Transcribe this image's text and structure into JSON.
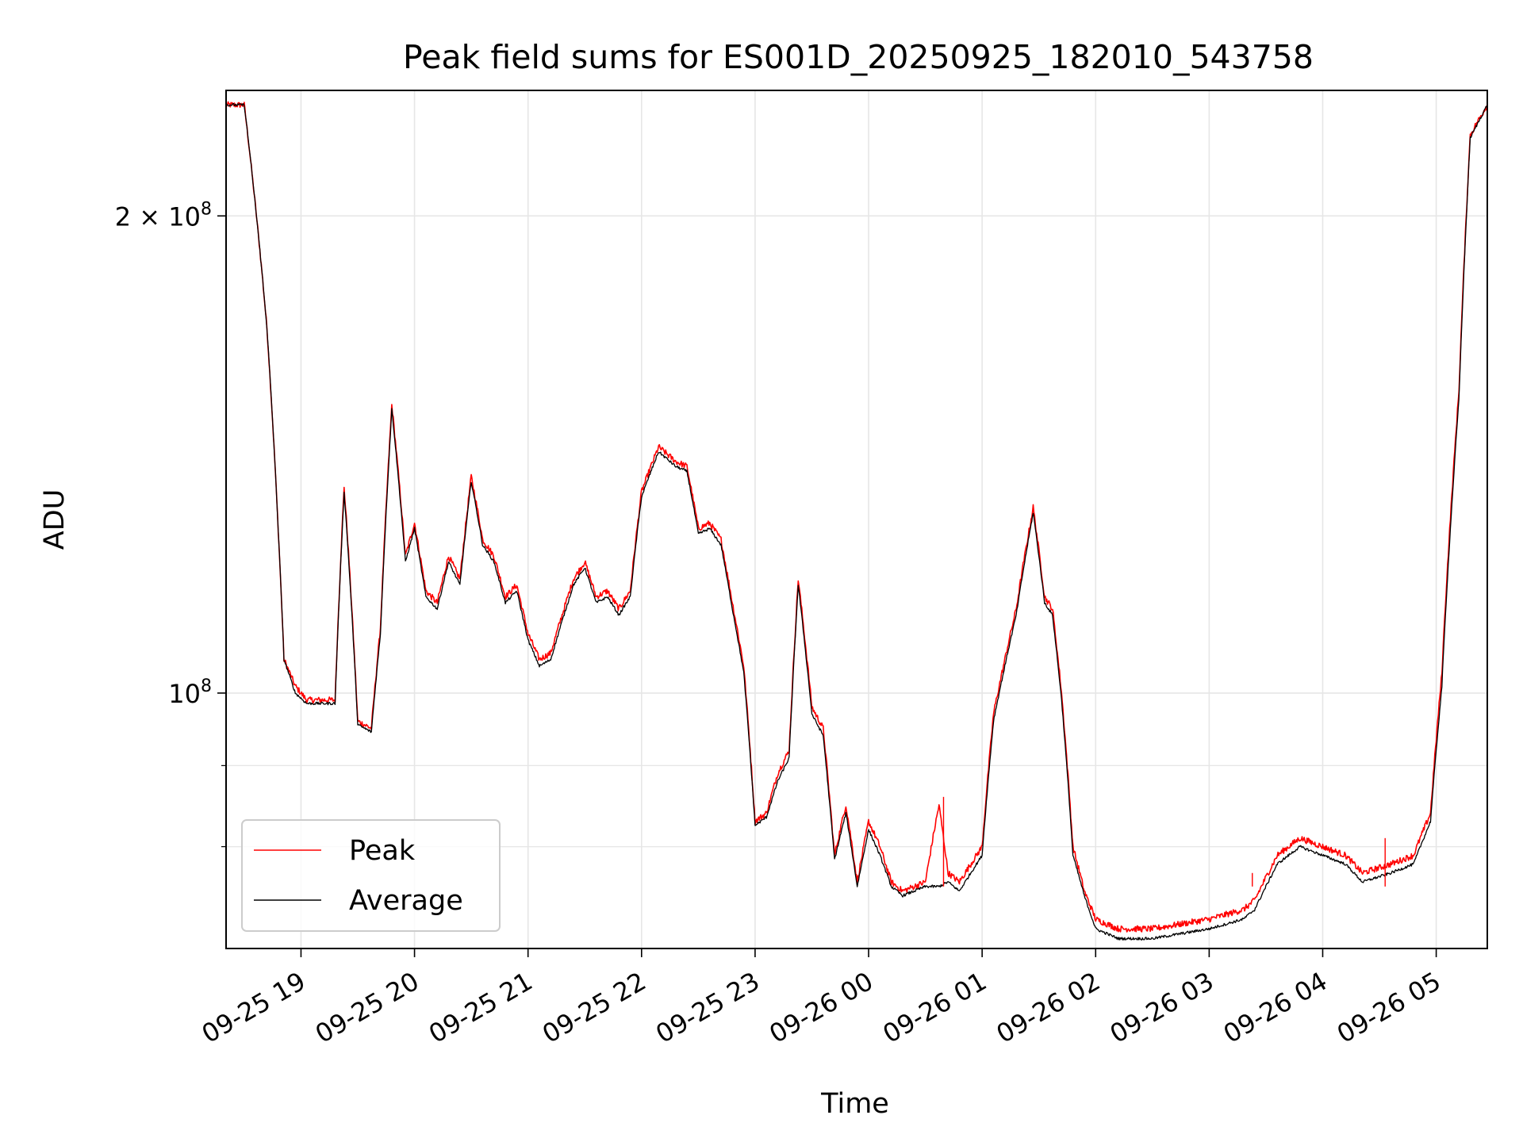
{
  "chart_data": {
    "type": "line",
    "title": "Peak field sums for ES001D_20250925_182010_543758",
    "xlabel": "Time",
    "ylabel": "ADU",
    "yscale": "log",
    "grid": true,
    "legend_position": "lower-left",
    "xlim": [
      18.34,
      29.45
    ],
    "ylim": [
      69000000,
      240000000
    ],
    "x_ticks": [
      {
        "value": 19,
        "label": "09-25 19"
      },
      {
        "value": 20,
        "label": "09-25 20"
      },
      {
        "value": 21,
        "label": "09-25 21"
      },
      {
        "value": 22,
        "label": "09-25 22"
      },
      {
        "value": 23,
        "label": "09-25 23"
      },
      {
        "value": 24,
        "label": "09-26 00"
      },
      {
        "value": 25,
        "label": "09-26 01"
      },
      {
        "value": 26,
        "label": "09-26 02"
      },
      {
        "value": 27,
        "label": "09-26 03"
      },
      {
        "value": 28,
        "label": "09-26 04"
      },
      {
        "value": 29,
        "label": "09-26 05"
      }
    ],
    "y_major_ticks": [
      {
        "value": 100000000,
        "base": "10",
        "exp": "8",
        "mantissa": ""
      },
      {
        "value": 200000000,
        "base": "10",
        "exp": "8",
        "mantissa": "2 × "
      }
    ],
    "y_minor_ticks": [
      80000000,
      90000000
    ],
    "x_units": "hours since 2025-09-25 00:00",
    "series": [
      {
        "name": "Peak",
        "color": "#ff0000",
        "points": [
          [
            18.34,
            235
          ],
          [
            18.5,
            235
          ],
          [
            18.7,
            170
          ],
          [
            18.85,
            105
          ],
          [
            18.95,
            101
          ],
          [
            19.05,
            99
          ],
          [
            19.3,
            99
          ],
          [
            19.38,
            135
          ],
          [
            19.5,
            96
          ],
          [
            19.62,
            95
          ],
          [
            19.7,
            110
          ],
          [
            19.8,
            152
          ],
          [
            19.92,
            122
          ],
          [
            20.0,
            128
          ],
          [
            20.1,
            116
          ],
          [
            20.2,
            114
          ],
          [
            20.3,
            122
          ],
          [
            20.4,
            118
          ],
          [
            20.5,
            137
          ],
          [
            20.6,
            125
          ],
          [
            20.7,
            122
          ],
          [
            20.8,
            115
          ],
          [
            20.9,
            117
          ],
          [
            21.0,
            109
          ],
          [
            21.1,
            105
          ],
          [
            21.2,
            106
          ],
          [
            21.3,
            112
          ],
          [
            21.4,
            118
          ],
          [
            21.5,
            121
          ],
          [
            21.6,
            115
          ],
          [
            21.7,
            116
          ],
          [
            21.8,
            113
          ],
          [
            21.9,
            116
          ],
          [
            22.0,
            134
          ],
          [
            22.15,
            143
          ],
          [
            22.3,
            140
          ],
          [
            22.4,
            139
          ],
          [
            22.5,
            127
          ],
          [
            22.6,
            128
          ],
          [
            22.7,
            125
          ],
          [
            22.8,
            114
          ],
          [
            22.9,
            104
          ],
          [
            23.0,
            83
          ],
          [
            23.1,
            84
          ],
          [
            23.2,
            89
          ],
          [
            23.3,
            92
          ],
          [
            23.38,
            118
          ],
          [
            23.5,
            98
          ],
          [
            23.6,
            95
          ],
          [
            23.7,
            79
          ],
          [
            23.8,
            85
          ],
          [
            23.9,
            76
          ],
          [
            24.0,
            83
          ],
          [
            24.1,
            80
          ],
          [
            24.2,
            76
          ],
          [
            24.3,
            75
          ],
          [
            24.5,
            76
          ],
          [
            24.62,
            85
          ],
          [
            24.7,
            77
          ],
          [
            24.8,
            76
          ],
          [
            25.0,
            80
          ],
          [
            25.1,
            97
          ],
          [
            25.2,
            105
          ],
          [
            25.3,
            113
          ],
          [
            25.45,
            131
          ],
          [
            25.55,
            115
          ],
          [
            25.62,
            113
          ],
          [
            25.7,
            100
          ],
          [
            25.8,
            80
          ],
          [
            25.9,
            75
          ],
          [
            26.0,
            72
          ],
          [
            26.2,
            71
          ],
          [
            26.5,
            71
          ],
          [
            27.0,
            72
          ],
          [
            27.3,
            73
          ],
          [
            27.4,
            74
          ],
          [
            27.6,
            79
          ],
          [
            27.8,
            81
          ],
          [
            28.0,
            80
          ],
          [
            28.2,
            79
          ],
          [
            28.35,
            77
          ],
          [
            28.6,
            78
          ],
          [
            28.8,
            79
          ],
          [
            28.95,
            84
          ],
          [
            29.05,
            103
          ],
          [
            29.2,
            155
          ],
          [
            29.3,
            225
          ],
          [
            29.45,
            235
          ]
        ]
      },
      {
        "name": "Average",
        "color": "#000000",
        "points": [
          [
            18.34,
            235
          ],
          [
            18.5,
            235
          ],
          [
            18.7,
            170
          ],
          [
            18.85,
            105
          ],
          [
            18.95,
            100
          ],
          [
            19.05,
            98.5
          ],
          [
            19.3,
            98.5
          ],
          [
            19.38,
            134
          ],
          [
            19.5,
            95.5
          ],
          [
            19.62,
            94.5
          ],
          [
            19.7,
            109
          ],
          [
            19.8,
            151
          ],
          [
            19.92,
            121
          ],
          [
            20.0,
            127
          ],
          [
            20.1,
            115
          ],
          [
            20.2,
            113
          ],
          [
            20.3,
            121
          ],
          [
            20.4,
            117
          ],
          [
            20.5,
            136
          ],
          [
            20.6,
            124
          ],
          [
            20.7,
            121
          ],
          [
            20.8,
            114
          ],
          [
            20.9,
            116
          ],
          [
            21.0,
            108
          ],
          [
            21.1,
            104
          ],
          [
            21.2,
            105
          ],
          [
            21.3,
            111
          ],
          [
            21.4,
            117
          ],
          [
            21.5,
            120
          ],
          [
            21.6,
            114
          ],
          [
            21.7,
            115
          ],
          [
            21.8,
            112
          ],
          [
            21.9,
            115
          ],
          [
            22.0,
            133
          ],
          [
            22.15,
            142
          ],
          [
            22.3,
            139
          ],
          [
            22.4,
            138
          ],
          [
            22.5,
            126
          ],
          [
            22.6,
            127
          ],
          [
            22.7,
            124
          ],
          [
            22.8,
            113
          ],
          [
            22.9,
            103
          ],
          [
            23.0,
            82.5
          ],
          [
            23.1,
            83.5
          ],
          [
            23.2,
            88
          ],
          [
            23.3,
            91
          ],
          [
            23.38,
            117
          ],
          [
            23.5,
            97
          ],
          [
            23.6,
            94
          ],
          [
            23.7,
            78.5
          ],
          [
            23.8,
            84
          ],
          [
            23.9,
            75.5
          ],
          [
            24.0,
            82
          ],
          [
            24.1,
            79
          ],
          [
            24.2,
            75.5
          ],
          [
            24.3,
            74.5
          ],
          [
            24.5,
            75.5
          ],
          [
            24.62,
            75.5
          ],
          [
            24.7,
            76
          ],
          [
            24.8,
            75
          ],
          [
            25.0,
            79
          ],
          [
            25.1,
            96
          ],
          [
            25.2,
            104
          ],
          [
            25.3,
            112
          ],
          [
            25.45,
            130
          ],
          [
            25.55,
            114
          ],
          [
            25.62,
            112
          ],
          [
            25.7,
            99
          ],
          [
            25.8,
            79
          ],
          [
            25.9,
            74.5
          ],
          [
            26.0,
            71
          ],
          [
            26.2,
            70
          ],
          [
            26.5,
            70
          ],
          [
            27.0,
            71
          ],
          [
            27.3,
            72
          ],
          [
            27.4,
            73
          ],
          [
            27.6,
            78
          ],
          [
            27.8,
            80
          ],
          [
            28.0,
            79
          ],
          [
            28.2,
            78
          ],
          [
            28.35,
            76
          ],
          [
            28.6,
            77
          ],
          [
            28.8,
            78
          ],
          [
            28.95,
            83
          ],
          [
            29.05,
            101
          ],
          [
            29.2,
            153
          ],
          [
            29.3,
            224
          ],
          [
            29.45,
            235
          ]
        ]
      }
    ],
    "spikes": [
      {
        "x": 24.66,
        "y": 86
      },
      {
        "x": 27.38,
        "y": 77
      },
      {
        "x": 28.55,
        "y": 81
      }
    ]
  }
}
